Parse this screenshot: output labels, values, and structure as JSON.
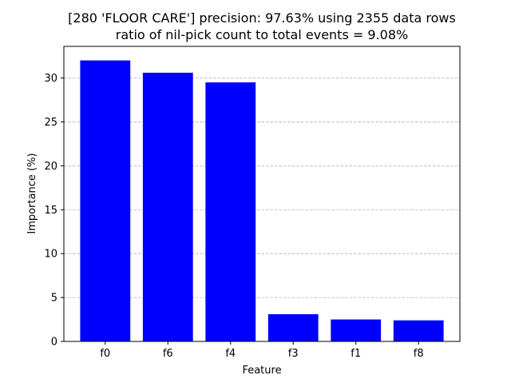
{
  "chart_data": {
    "type": "bar",
    "title_line1": "[280 'FLOOR CARE'] precision: 97.63% using 2355 data rows",
    "title_line2": "ratio of nil-pick count to total events = 9.08%",
    "xlabel": "Feature",
    "ylabel": "Importance (%)",
    "categories": [
      "f0",
      "f6",
      "f4",
      "f3",
      "f1",
      "f8"
    ],
    "values": [
      32.0,
      30.6,
      29.5,
      3.1,
      2.5,
      2.4
    ],
    "ylim": [
      0,
      33.6
    ],
    "yticks": [
      0,
      5,
      10,
      15,
      20,
      25,
      30
    ],
    "bar_color": "#0000ff",
    "grid": "y-axis dashed"
  }
}
